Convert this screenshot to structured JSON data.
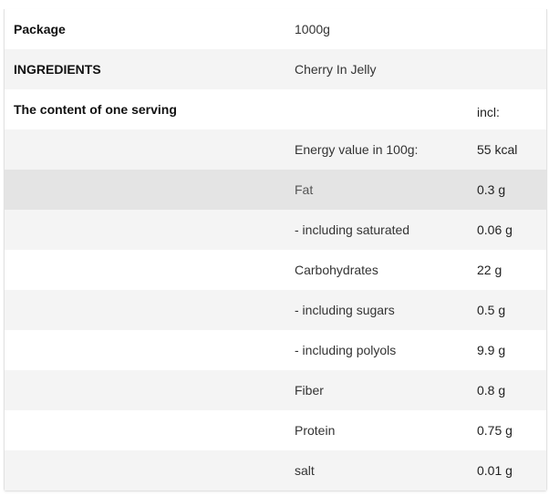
{
  "rows": [
    {
      "label": "Package",
      "name": "1000g",
      "value": ""
    },
    {
      "label": "INGREDIENTS",
      "name": "Cherry In Jelly",
      "value": ""
    },
    {
      "label": "The content of one serving",
      "name": "",
      "value": "incl:"
    },
    {
      "label": "",
      "name": "Energy value in 100g:",
      "value": "55 kcal"
    },
    {
      "label": "",
      "name": "Fat",
      "value": "0.3 g"
    },
    {
      "label": "",
      "name": "- including saturated",
      "value": "0.06 g"
    },
    {
      "label": "",
      "name": "Carbohydrates",
      "value": "22 g"
    },
    {
      "label": "",
      "name": "- including sugars",
      "value": "0.5 g"
    },
    {
      "label": "",
      "name": "- including polyols",
      "value": "9.9 g"
    },
    {
      "label": "",
      "name": "Fiber",
      "value": "0.8 g"
    },
    {
      "label": "",
      "name": "Protein",
      "value": "0.75 g"
    },
    {
      "label": "",
      "name": "salt",
      "value": "0.01 g"
    }
  ]
}
